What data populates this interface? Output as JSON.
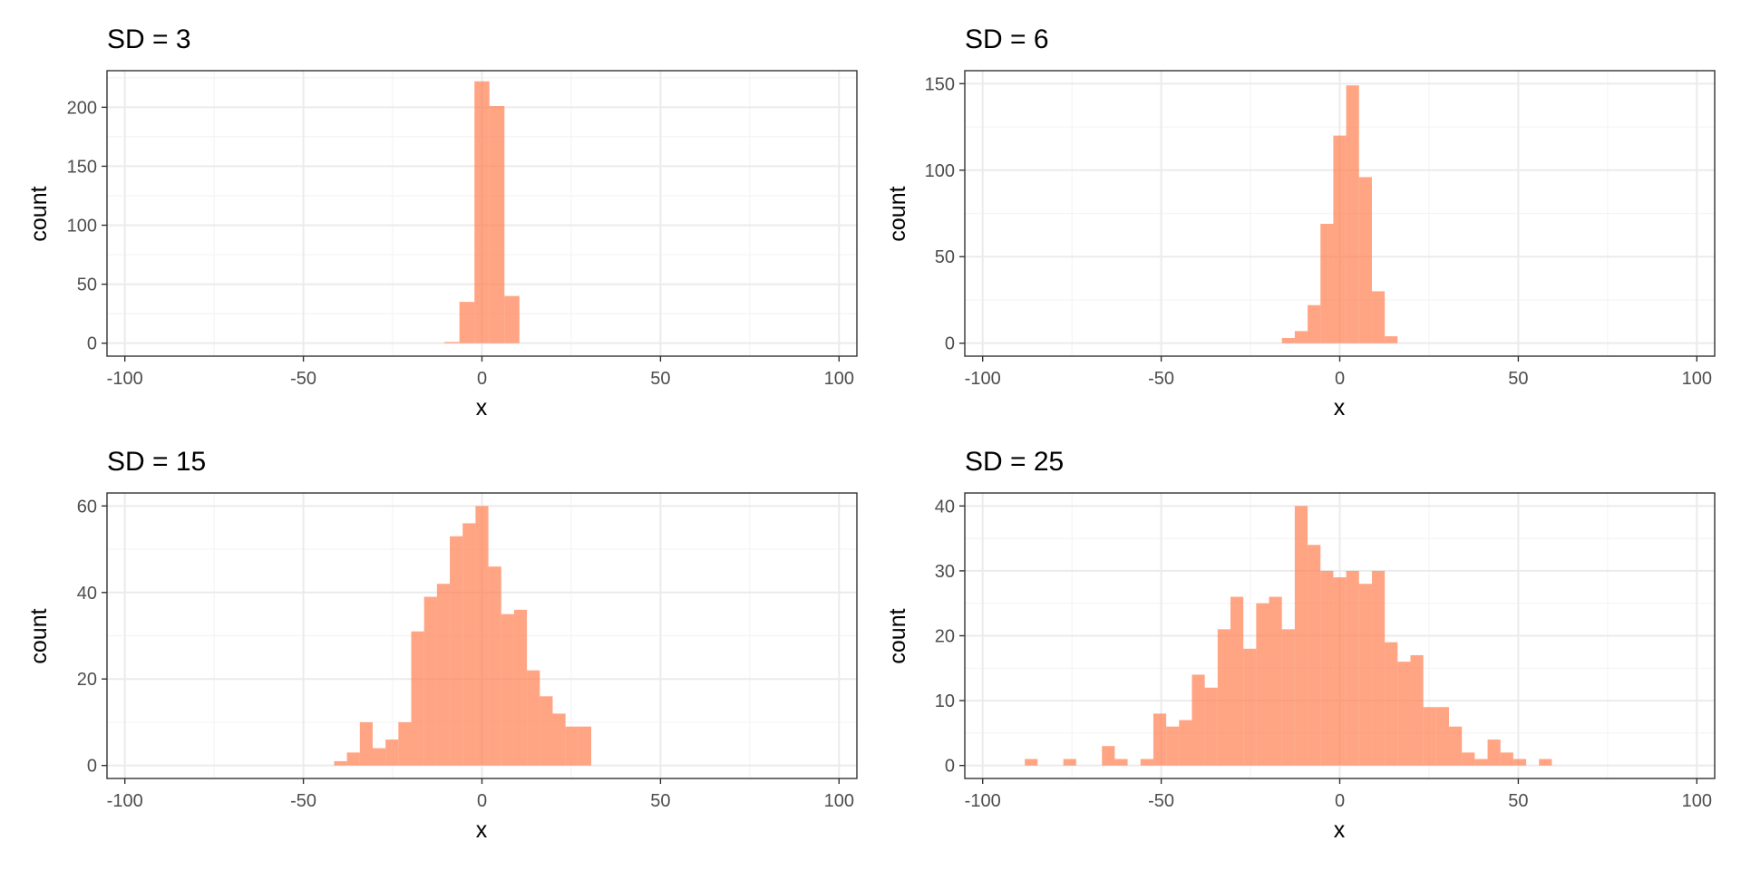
{
  "colors": {
    "bar_fill": "#FF7F50",
    "bar_opacity": 0.7,
    "panel_border": "#333333",
    "grid_major": "#EBEBEB",
    "grid_minor": "#F4F4F4",
    "tick_text": "#4D4D4D"
  },
  "chart_data": [
    {
      "type": "bar",
      "title": "SD = 3",
      "xlabel": "x",
      "ylabel": "count",
      "xlim": [
        -100,
        100
      ],
      "ylim": [
        0,
        220
      ],
      "x_ticks": [
        "-100",
        "-50",
        "0",
        "50",
        "100"
      ],
      "y_ticks": [
        "0",
        "50",
        "100",
        "150",
        "200"
      ],
      "y_tick_values": [
        0,
        50,
        100,
        150,
        200
      ],
      "grid": true,
      "bin_width": 4.2,
      "bin_centers": [
        -8.4,
        -4.2,
        0,
        4.2,
        8.4
      ],
      "counts": [
        1,
        35,
        222,
        201,
        40
      ]
    },
    {
      "type": "bar",
      "title": "SD = 6",
      "xlabel": "x",
      "ylabel": "count",
      "xlim": [
        -100,
        100
      ],
      "ylim": [
        0,
        150
      ],
      "x_ticks": [
        "-100",
        "-50",
        "0",
        "50",
        "100"
      ],
      "y_ticks": [
        "0",
        "50",
        "100",
        "150"
      ],
      "y_tick_values": [
        0,
        50,
        100,
        150
      ],
      "grid": true,
      "bin_width": 3.6,
      "bin_centers": [
        -14.4,
        -10.8,
        -7.2,
        -3.6,
        0,
        3.6,
        7.2,
        10.8,
        14.4
      ],
      "counts": [
        3,
        7,
        22,
        69,
        120,
        149,
        96,
        30,
        4
      ]
    },
    {
      "type": "bar",
      "title": "SD = 15",
      "xlabel": "x",
      "ylabel": "count",
      "xlim": [
        -100,
        100
      ],
      "ylim": [
        0,
        60
      ],
      "x_ticks": [
        "-100",
        "-50",
        "0",
        "50",
        "100"
      ],
      "y_ticks": [
        "0",
        "20",
        "40",
        "60"
      ],
      "y_tick_values": [
        0,
        20,
        40,
        60
      ],
      "grid": true,
      "bin_width": 3.6,
      "bin_centers": [
        -39.6,
        -36.0,
        -32.4,
        -28.8,
        -25.2,
        -21.6,
        -18.0,
        -14.4,
        -10.8,
        -7.2,
        -3.6,
        0,
        3.6,
        7.2,
        10.8,
        14.4,
        18.0,
        21.6,
        25.2,
        28.8,
        32.4,
        36.0
      ],
      "counts": [
        1,
        3,
        10,
        4,
        6,
        10,
        31,
        39,
        42,
        53,
        56,
        60,
        46,
        35,
        36,
        22,
        16,
        12,
        9,
        9,
        0,
        0
      ]
    },
    {
      "type": "bar",
      "title": "SD = 25",
      "xlabel": "x",
      "ylabel": "count",
      "xlim": [
        -100,
        100
      ],
      "ylim": [
        0,
        40
      ],
      "x_ticks": [
        "-100",
        "-50",
        "0",
        "50",
        "100"
      ],
      "y_ticks": [
        "0",
        "10",
        "20",
        "30",
        "40"
      ],
      "y_tick_values": [
        0,
        10,
        20,
        30,
        40
      ],
      "grid": true,
      "bin_width": 3.6,
      "bin_centers": [
        -86.4,
        -82.8,
        -79.2,
        -75.6,
        -72.0,
        -68.4,
        -64.8,
        -61.2,
        -57.6,
        -54.0,
        -50.4,
        -46.8,
        -43.2,
        -39.6,
        -36.0,
        -32.4,
        -28.8,
        -25.2,
        -21.6,
        -18.0,
        -14.4,
        -10.8,
        -7.2,
        -3.6,
        0,
        3.6,
        7.2,
        10.8,
        14.4,
        18.0,
        21.6,
        25.2,
        28.8,
        32.4,
        36.0,
        39.6,
        43.2,
        46.8,
        50.4,
        54.0,
        57.6,
        61.2,
        64.8,
        68.4,
        72.0
      ],
      "counts": [
        1,
        0,
        0,
        1,
        0,
        0,
        3,
        1,
        0,
        1,
        8,
        6,
        7,
        14,
        12,
        21,
        26,
        18,
        25,
        26,
        21,
        40,
        34,
        30,
        29,
        30,
        28,
        30,
        19,
        16,
        17,
        9,
        9,
        6,
        2,
        1,
        4,
        2,
        1,
        0,
        1,
        0,
        0,
        0,
        0
      ]
    }
  ]
}
